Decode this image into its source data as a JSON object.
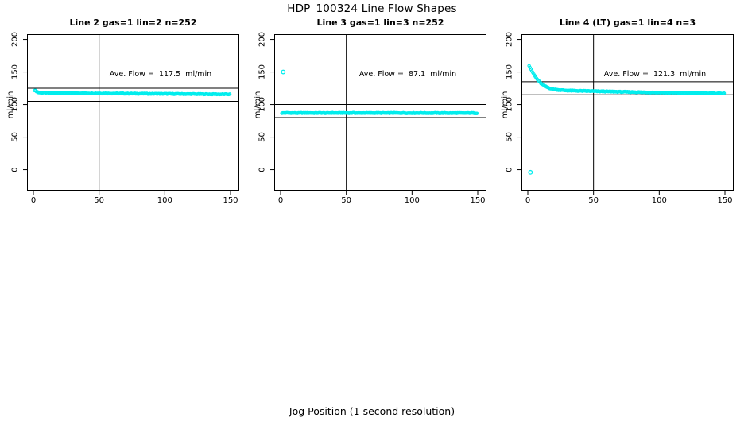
{
  "page": {
    "title": "HDP_100324  Line Flow Shapes",
    "xlabel": "Jog Position (1 second resolution)"
  },
  "colors": {
    "points": "#00EDED",
    "axis": "#000000",
    "background": "#FFFFFF"
  },
  "chart_data": [
    {
      "type": "scatter",
      "title": "Line 2 gas=1 lin=2 n=252",
      "annotation": "Ave. Flow =  117.5  ml/min",
      "ave_flow": 117.5,
      "n": 252,
      "ylabel": "ml/min",
      "xlim": [
        0,
        150
      ],
      "ylim": [
        0,
        200
      ],
      "xticks": [
        0,
        50,
        100,
        150
      ],
      "yticks": [
        0,
        50,
        100,
        150,
        200
      ],
      "vline_x": 50,
      "hlines": [
        105,
        125
      ],
      "x_start": 1,
      "x_step": 3,
      "noise": 1.0,
      "y_samples": [
        122.0,
        118.4,
        118.1,
        118.0,
        117.9,
        117.8,
        117.8,
        117.7,
        117.7,
        117.6,
        117.6,
        117.5,
        117.5,
        117.4,
        117.4,
        117.3,
        117.3,
        117.2,
        117.2,
        117.1,
        117.1,
        117.0,
        117.0,
        116.9,
        116.9,
        116.8,
        116.8,
        116.7,
        116.7,
        116.6,
        116.6,
        116.6,
        116.5,
        116.5,
        116.4,
        116.4,
        116.3,
        116.3,
        116.2,
        116.2,
        116.2,
        116.1,
        116.1,
        116.0,
        116.0,
        115.9,
        115.9,
        115.8,
        115.8,
        115.8
      ],
      "outliers": []
    },
    {
      "type": "scatter",
      "title": "Line 3 gas=1 lin=3 n=252",
      "annotation": "Ave. Flow =  87.1  ml/min",
      "ave_flow": 87.1,
      "n": 252,
      "ylabel": "ml/min",
      "xlim": [
        0,
        150
      ],
      "ylim": [
        0,
        200
      ],
      "xticks": [
        0,
        50,
        100,
        150
      ],
      "yticks": [
        0,
        50,
        100,
        150,
        200
      ],
      "vline_x": 50,
      "hlines": [
        80,
        100
      ],
      "x_start": 1,
      "x_step": 3,
      "noise": 0.9,
      "y_samples": [
        86.9,
        87.2,
        87.0,
        87.1,
        86.8,
        87.1,
        87.0,
        87.2,
        86.9,
        87.0,
        87.1,
        86.8,
        87.0,
        87.2,
        86.9,
        87.1,
        87.0,
        86.9,
        87.1,
        87.0,
        86.8,
        87.1,
        86.9,
        87.0,
        87.1,
        86.9,
        87.0,
        86.8,
        87.1,
        87.0,
        86.9,
        87.1,
        86.8,
        87.0,
        86.9,
        87.1,
        87.0,
        86.8,
        86.9,
        87.0,
        86.8,
        87.0,
        86.9,
        86.8,
        87.0,
        86.9,
        86.8,
        86.9,
        87.0,
        86.8
      ],
      "outliers": [
        [
          2,
          150
        ]
      ]
    },
    {
      "type": "scatter",
      "title": "Line 4 (LT) gas=1 lin=4 n=3",
      "annotation": "Ave. Flow =  121.3  ml/min",
      "ave_flow": 121.3,
      "n": 3,
      "ylabel": "ml/min",
      "xlim": [
        0,
        150
      ],
      "ylim": [
        0,
        200
      ],
      "xticks": [
        0,
        50,
        100,
        150
      ],
      "yticks": [
        0,
        50,
        100,
        150,
        200
      ],
      "vline_x": 50,
      "hlines": [
        115,
        135
      ],
      "x_start": 1,
      "x_step": 3,
      "noise": 1.1,
      "y_samples": [
        160.0,
        148.0,
        139.0,
        132.5,
        128.2,
        125.5,
        123.8,
        122.8,
        122.2,
        121.8,
        121.5,
        121.3,
        121.2,
        121.0,
        120.9,
        120.7,
        120.6,
        120.4,
        120.3,
        120.2,
        120.0,
        119.9,
        119.8,
        119.6,
        119.5,
        119.4,
        119.3,
        119.2,
        119.0,
        118.9,
        118.8,
        118.7,
        118.6,
        118.5,
        118.4,
        118.3,
        118.2,
        118.1,
        118.0,
        117.9,
        117.9,
        117.8,
        117.7,
        117.6,
        117.6,
        117.5,
        117.4,
        117.4,
        117.3,
        117.3
      ],
      "outliers": [
        [
          2,
          -4
        ]
      ]
    }
  ]
}
